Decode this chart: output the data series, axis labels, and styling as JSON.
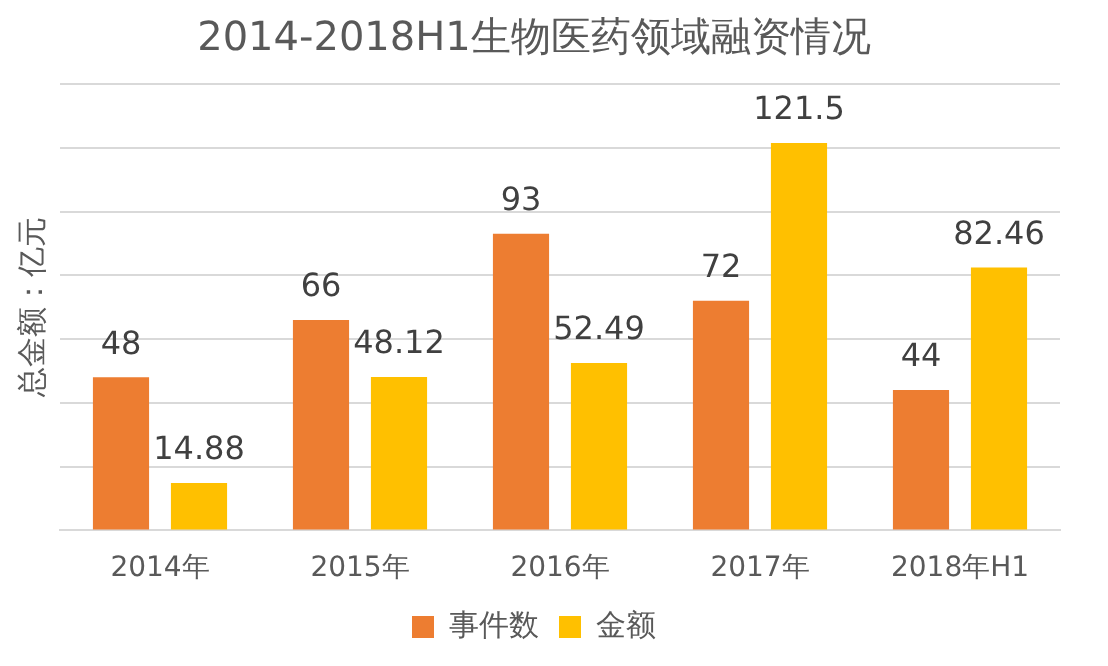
{
  "chart_data": {
    "type": "bar",
    "title": "2014-2018H1生物医药领域融资情况",
    "ylabel": "总金额：亿元",
    "categories": [
      "2014年",
      "2015年",
      "2016年",
      "2017年",
      "2018年H1"
    ],
    "series": [
      {
        "name": "事件数",
        "color": "#ed7d31",
        "values": [
          48,
          66,
          93,
          72,
          44
        ]
      },
      {
        "name": "金额",
        "color": "#ffc000",
        "values": [
          14.88,
          48.12,
          52.49,
          121.5,
          82.46
        ]
      }
    ],
    "ylim": [
      0,
      140
    ],
    "yticks": [
      {
        "value": 0,
        "label": null
      },
      {
        "value": 20,
        "label": null
      },
      {
        "value": 40,
        "label": null
      },
      {
        "value": 60,
        "label": null
      },
      {
        "value": 80,
        "label": null
      },
      {
        "value": 100,
        "label": null
      },
      {
        "value": 120,
        "label": null
      },
      {
        "value": 140,
        "label": null
      }
    ],
    "tick_labels": "x",
    "grid": "y",
    "legend": "bottom",
    "data_labels": true
  }
}
